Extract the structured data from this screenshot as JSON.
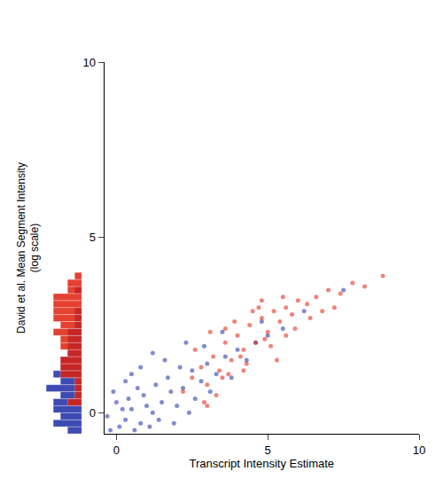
{
  "chart_data": {
    "type": "scatter",
    "x_label": "Transcript Intensity Estimate",
    "y_label": "David et al. Mean Segment Intensity\n(log scale)",
    "xlim": [
      -0.4,
      10
    ],
    "ylim": [
      -0.6,
      10
    ],
    "xticks": [
      0,
      5,
      10
    ],
    "yticks": [
      0,
      5,
      10
    ],
    "grid": false,
    "marker": "circle",
    "series": [
      {
        "color": "#1c2ca6",
        "x": [
          0.1,
          -0.2,
          0.3,
          0.5,
          0.8,
          1.0,
          1.2,
          0.4,
          0.6,
          1.5,
          1.8,
          2.0,
          0.2,
          -0.3,
          0.9,
          1.3,
          1.7,
          2.2,
          2.5,
          2.8,
          3.0,
          3.3,
          3.6,
          4.0,
          4.3,
          4.6,
          5.0,
          1.1,
          0.7,
          0.0,
          1.4,
          2.1,
          2.6,
          3.1,
          0.3,
          1.9,
          2.4,
          3.5,
          4.8,
          5.5,
          6.2,
          7.5,
          0.5,
          1.6,
          2.9,
          -0.1,
          0.8,
          1.2,
          2.3,
          3.8
        ],
        "y": [
          -0.4,
          -0.5,
          -0.2,
          0.1,
          -0.3,
          0.2,
          0.0,
          0.4,
          -0.5,
          0.3,
          0.6,
          0.2,
          0.1,
          -0.1,
          0.5,
          0.8,
          1.0,
          0.7,
          1.2,
          0.9,
          1.4,
          1.1,
          1.6,
          1.8,
          1.5,
          2.0,
          2.2,
          -0.4,
          0.7,
          0.3,
          -0.2,
          1.3,
          0.4,
          0.6,
          0.9,
          -0.3,
          0.0,
          2.3,
          2.6,
          2.4,
          2.9,
          3.5,
          1.1,
          1.5,
          1.9,
          0.6,
          1.3,
          1.7,
          2.0,
          1.0
        ]
      },
      {
        "color": "#e0200e",
        "x": [
          2.2,
          2.5,
          2.8,
          3.0,
          3.2,
          3.4,
          3.6,
          3.8,
          4.0,
          4.2,
          4.4,
          4.6,
          4.8,
          5.0,
          5.2,
          5.4,
          5.6,
          5.8,
          6.0,
          6.3,
          6.6,
          7.0,
          7.4,
          7.8,
          8.2,
          8.8,
          2.6,
          3.1,
          3.5,
          3.9,
          4.3,
          4.7,
          5.1,
          5.5,
          5.9,
          6.4,
          3.3,
          3.7,
          4.1,
          4.5,
          4.9,
          5.3,
          2.9,
          3.6,
          4.2,
          4.8,
          5.6,
          6.8,
          7.2,
          3.0
        ],
        "y": [
          0.6,
          1.0,
          1.3,
          0.8,
          1.6,
          1.2,
          2.0,
          1.5,
          2.2,
          1.8,
          2.5,
          2.0,
          2.7,
          2.3,
          2.9,
          2.6,
          3.0,
          2.8,
          3.2,
          3.1,
          3.3,
          3.5,
          3.4,
          3.7,
          3.6,
          3.9,
          1.8,
          2.3,
          1.0,
          2.6,
          1.4,
          3.0,
          1.9,
          3.3,
          2.4,
          2.7,
          0.5,
          1.1,
          1.6,
          2.9,
          2.1,
          1.5,
          0.3,
          2.4,
          1.2,
          3.2,
          2.2,
          2.9,
          3.0,
          0.2
        ]
      }
    ]
  }
}
